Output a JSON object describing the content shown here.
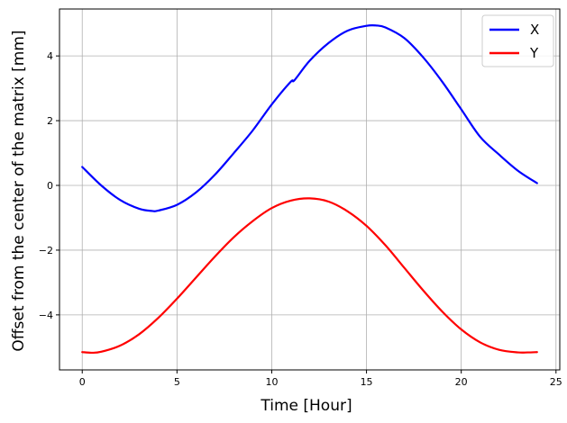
{
  "chart_data": {
    "type": "line",
    "xlabel": "Time [Hour]",
    "ylabel": "Offset from the center of the matrix [mm]",
    "xlim": [
      -1.2,
      25.2
    ],
    "ylim": [
      -5.7,
      5.45
    ],
    "xticks": [
      0,
      5,
      10,
      15,
      20,
      25
    ],
    "yticks": [
      -4,
      -2,
      0,
      2,
      4
    ],
    "xtick_labels": [
      "0",
      "5",
      "10",
      "15",
      "20",
      "25"
    ],
    "ytick_labels": [
      "−4",
      "−2",
      "0",
      "2",
      "4"
    ],
    "grid": true,
    "legend": {
      "placement": "top-right",
      "entries": [
        "X",
        "Y"
      ]
    },
    "series": [
      {
        "name": "X",
        "color": "#0000ff",
        "x": [
          0,
          1,
          2,
          3,
          3.7,
          4,
          5,
          6,
          7,
          8,
          9,
          10,
          11,
          11.2,
          12,
          13,
          14,
          15,
          15.5,
          16,
          17,
          18,
          19,
          20,
          21,
          22,
          23,
          24
        ],
        "y": [
          0.57,
          0.0,
          -0.45,
          -0.72,
          -0.79,
          -0.78,
          -0.6,
          -0.22,
          0.33,
          1.0,
          1.7,
          2.5,
          3.2,
          3.25,
          3.85,
          4.4,
          4.78,
          4.93,
          4.94,
          4.88,
          4.55,
          3.95,
          3.2,
          2.35,
          1.5,
          0.95,
          0.45,
          0.07
        ]
      },
      {
        "name": "Y",
        "color": "#ff0000",
        "x": [
          0,
          0.5,
          1,
          2,
          3,
          4,
          5,
          6,
          7,
          8,
          9,
          10,
          11,
          12,
          13,
          14,
          15,
          16,
          17,
          18,
          19,
          20,
          21,
          22,
          23,
          23.5,
          24
        ],
        "y": [
          -5.15,
          -5.17,
          -5.14,
          -4.95,
          -4.6,
          -4.1,
          -3.5,
          -2.85,
          -2.2,
          -1.6,
          -1.1,
          -0.7,
          -0.47,
          -0.4,
          -0.5,
          -0.8,
          -1.25,
          -1.85,
          -2.55,
          -3.25,
          -3.9,
          -4.45,
          -4.85,
          -5.08,
          -5.16,
          -5.16,
          -5.15
        ]
      }
    ]
  }
}
